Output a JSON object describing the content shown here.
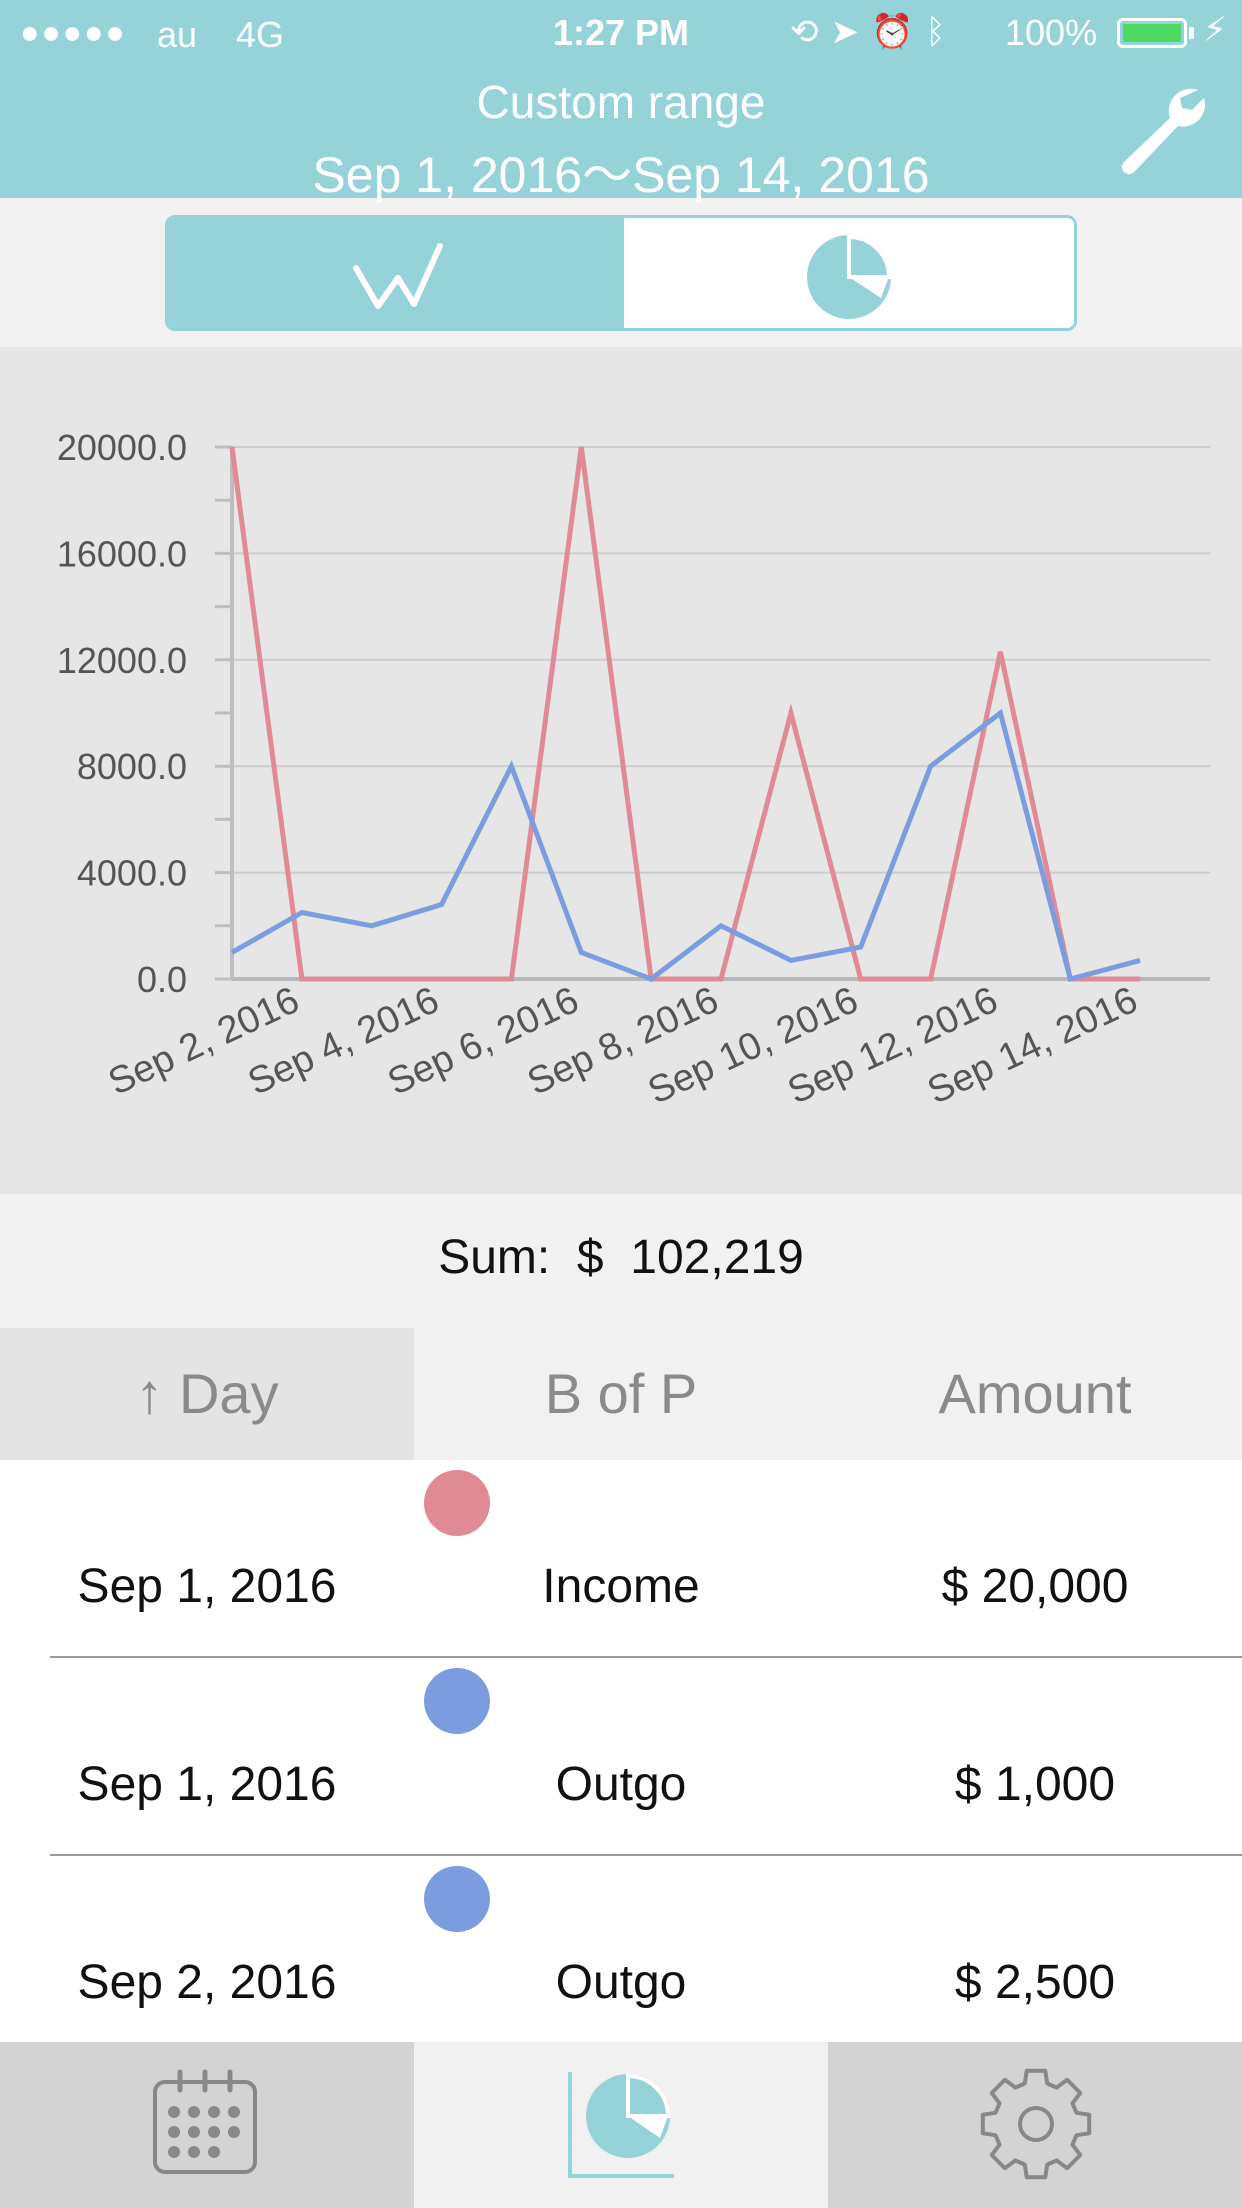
{
  "status_bar": {
    "signal": "●●●●●",
    "carrier": "au",
    "network": "4G",
    "time": "1:27 PM",
    "battery_percent": "100%",
    "icons": [
      "rotation-lock-icon",
      "location-icon",
      "alarm-icon",
      "bluetooth-icon",
      "battery-icon",
      "charging-icon"
    ]
  },
  "header": {
    "title": "Custom range",
    "range": "Sep 1, 2016〜Sep 14, 2016",
    "settings_icon": "wrench-icon",
    "background": "#96d3d9"
  },
  "segment": {
    "options": [
      "line-chart-icon",
      "pie-chart-icon"
    ],
    "selected": "line-chart-icon"
  },
  "chart_data": {
    "type": "line",
    "x": [
      "Sep 1, 2016",
      "Sep 2, 2016",
      "Sep 3, 2016",
      "Sep 4, 2016",
      "Sep 5, 2016",
      "Sep 6, 2016",
      "Sep 7, 2016",
      "Sep 8, 2016",
      "Sep 9, 2016",
      "Sep 10, 2016",
      "Sep 11, 2016",
      "Sep 12, 2016",
      "Sep 13, 2016",
      "Sep 14, 2016"
    ],
    "x_tick_labels": [
      "Sep 2, 2016",
      "Sep 4, 2016",
      "Sep 6, 2016",
      "Sep 8, 2016",
      "Sep 10, 2016",
      "Sep 12, 2016",
      "Sep 14, 2016"
    ],
    "y_tick_labels": [
      "0.0",
      "4000.0",
      "8000.0",
      "12000.0",
      "16000.0",
      "20000.0"
    ],
    "ylim": [
      0,
      20000
    ],
    "grid": true,
    "series": [
      {
        "color": "#e08a96",
        "values": [
          20000,
          0,
          0,
          0,
          0,
          20000,
          0,
          0,
          10000,
          0,
          0,
          12300,
          0,
          0
        ]
      },
      {
        "color": "#7b9de0",
        "values": [
          1000,
          2500,
          2000,
          2800,
          8000,
          1000,
          0,
          2000,
          700,
          1200,
          8000,
          10000,
          0,
          700
        ]
      }
    ]
  },
  "summary": {
    "label": "Sum:",
    "currency": "$",
    "total": "102,219"
  },
  "table": {
    "headers": {
      "day": "↑ Day",
      "bop": "B of P",
      "amount": "Amount"
    },
    "rows": [
      {
        "day": "Sep 1, 2016",
        "type": "Income",
        "amount": "$  20,000",
        "dot_color": "#e08a96"
      },
      {
        "day": "Sep 1, 2016",
        "type": "Outgo",
        "amount": "$  1,000",
        "dot_color": "#7b9de0"
      },
      {
        "day": "Sep 2, 2016",
        "type": "Outgo",
        "amount": "$  2,500",
        "dot_color": "#7b9de0"
      }
    ]
  },
  "tabbar": {
    "items": [
      "calendar-icon",
      "pie-chart-icon",
      "gear-icon"
    ],
    "selected": "pie-chart-icon",
    "accent": "#96d3d9"
  }
}
